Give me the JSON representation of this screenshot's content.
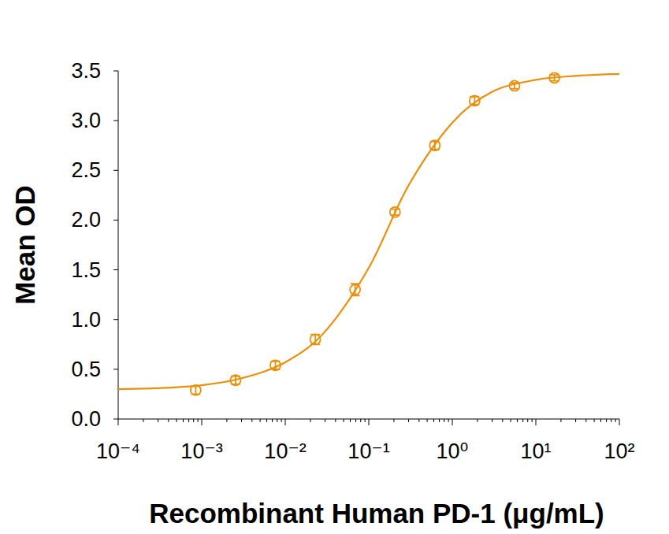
{
  "chart_data": {
    "type": "scatter",
    "x_label": "Recombinant Human PD-1 (μg/mL)",
    "y_label": "Mean OD",
    "log": "x",
    "grid": false,
    "xlim": [
      0.0001,
      100
    ],
    "xticks": [
      {
        "value": 0.0001,
        "label": "10⁻⁴"
      },
      {
        "value": 0.001,
        "label": "10⁻³"
      },
      {
        "value": 0.01,
        "label": "10⁻²"
      },
      {
        "value": 0.1,
        "label": "10⁻¹"
      },
      {
        "value": 1,
        "label": "10⁰"
      },
      {
        "value": 10,
        "label": "10¹"
      },
      {
        "value": 100,
        "label": "10²"
      }
    ],
    "ylim": [
      0,
      3.5
    ],
    "yticks": [
      {
        "value": 0,
        "label": "0.0"
      },
      0.5,
      {
        "value": 1,
        "label": "1.0"
      },
      1.5,
      {
        "value": 2,
        "label": "2.0"
      },
      2.5,
      {
        "value": 3,
        "label": "3.0"
      },
      3.5
    ],
    "series": [
      {
        "type": "scatter",
        "marker": "circle",
        "color": "#e8900c",
        "x": [
          0.000847,
          0.00254,
          0.00762,
          0.0229,
          0.0686,
          0.206,
          0.617,
          1.85,
          5.56,
          16.7
        ],
        "values": [
          0.29,
          0.39,
          0.54,
          0.8,
          1.3,
          2.08,
          2.75,
          3.2,
          3.35,
          3.43
        ],
        "errors": [
          0.04,
          0.04,
          0.04,
          0.05,
          0.06,
          0.03,
          0.04,
          0.04,
          0.03,
          0.03
        ]
      },
      {
        "type": "line",
        "line_style": "solid",
        "color": "#e8900c",
        "x": [
          0.0001,
          0.0003,
          0.001,
          0.003,
          0.01,
          0.03,
          0.1,
          0.3,
          1,
          3,
          10,
          30,
          100
        ],
        "values": [
          0.3,
          0.31,
          0.34,
          0.41,
          0.57,
          0.88,
          1.52,
          2.35,
          2.98,
          3.29,
          3.41,
          3.45,
          3.47
        ]
      }
    ]
  }
}
